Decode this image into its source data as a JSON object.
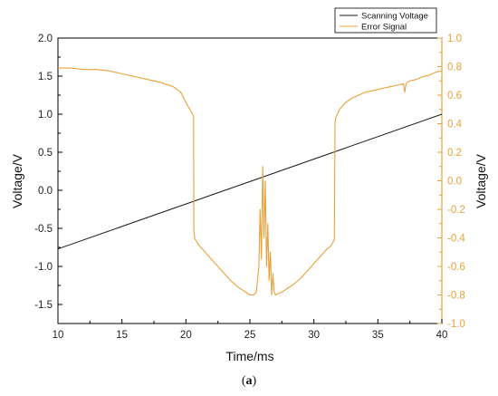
{
  "caption": {
    "open": "(",
    "letter": "a",
    "close": ")"
  },
  "colors": {
    "scanning": "#1a1a1a",
    "error": "#E8A13A",
    "axis": "#000000",
    "right_axis": "#E8A13A"
  },
  "chart_data": {
    "type": "line",
    "xlabel": "Time/ms",
    "ylabel_left": "Voltage/V",
    "ylabel_right": "Voltage/V",
    "xlim": [
      10,
      40
    ],
    "ylim_left": [
      -1.75,
      2.0
    ],
    "ylim_right": [
      -1.0,
      1.0
    ],
    "x_ticks": [
      10,
      15,
      20,
      25,
      30,
      35,
      40
    ],
    "x_tick_labels": [
      "10",
      "15",
      "20",
      "25",
      "30",
      "35",
      "40"
    ],
    "y_left_ticks": [
      2.0,
      1.5,
      1.0,
      0.5,
      0.0,
      -0.5,
      -1.0,
      -1.5
    ],
    "y_left_tick_labels": [
      "2.0",
      "1.5",
      "1.0",
      "0.5",
      "0.0",
      "-0.5",
      "-1.0",
      "-1.5"
    ],
    "y_right_ticks": [
      1.0,
      0.8,
      0.6,
      0.4,
      0.2,
      0.0,
      -0.2,
      -0.4,
      -0.6,
      -0.8,
      -1.0
    ],
    "y_right_tick_labels": [
      "1.0",
      "0.8",
      "0.6",
      "0.4",
      "0.2",
      "0.0",
      "-0.2",
      "-0.4",
      "-0.6",
      "-0.8",
      "-1.0"
    ],
    "grid": false,
    "legend_position": "top-right",
    "series": [
      {
        "name": "Scanning Voltage",
        "axis": "left",
        "color": "#1a1a1a",
        "x": [
          10,
          40
        ],
        "y": [
          -0.77,
          1.0
        ]
      },
      {
        "name": "Error Signal",
        "axis": "right",
        "color": "#E8A13A",
        "x": [
          10,
          11,
          12,
          13,
          14,
          15,
          16,
          17,
          18,
          19,
          19.6,
          20.0,
          20.3,
          20.5,
          20.6,
          20.62,
          20.7,
          20.8,
          21,
          21.5,
          22,
          22.5,
          23,
          23.5,
          24,
          24.5,
          25,
          25.3,
          25.5,
          25.7,
          25.8,
          25.9,
          26.0,
          26.1,
          26.2,
          26.3,
          26.4,
          26.5,
          26.6,
          26.7,
          26.8,
          26.9,
          27.0,
          27.2,
          27.5,
          28,
          28.5,
          29,
          29.5,
          30,
          30.5,
          31,
          31.3,
          31.5,
          31.6,
          31.65,
          31.7,
          31.8,
          32,
          32.5,
          33,
          33.5,
          34,
          34.5,
          35,
          35.5,
          36,
          36.5,
          37,
          37.1,
          37.2,
          37.3,
          37.5,
          38,
          38.5,
          39,
          39.5,
          40
        ],
        "y": [
          0.79,
          0.79,
          0.78,
          0.78,
          0.77,
          0.75,
          0.73,
          0.71,
          0.69,
          0.66,
          0.62,
          0.55,
          0.5,
          0.47,
          0.45,
          -0.35,
          -0.41,
          -0.42,
          -0.45,
          -0.5,
          -0.55,
          -0.6,
          -0.65,
          -0.7,
          -0.74,
          -0.77,
          -0.8,
          -0.8,
          -0.78,
          -0.6,
          -0.2,
          -0.55,
          0.1,
          -0.4,
          0.0,
          -0.6,
          -0.3,
          -0.7,
          -0.5,
          -0.8,
          -0.65,
          -0.78,
          -0.8,
          -0.79,
          -0.78,
          -0.75,
          -0.72,
          -0.68,
          -0.63,
          -0.58,
          -0.53,
          -0.48,
          -0.46,
          -0.43,
          -0.41,
          0.4,
          0.44,
          0.46,
          0.5,
          0.55,
          0.58,
          0.6,
          0.62,
          0.63,
          0.64,
          0.65,
          0.66,
          0.67,
          0.68,
          0.62,
          0.68,
          0.69,
          0.7,
          0.71,
          0.73,
          0.74,
          0.76,
          0.77
        ]
      }
    ]
  }
}
